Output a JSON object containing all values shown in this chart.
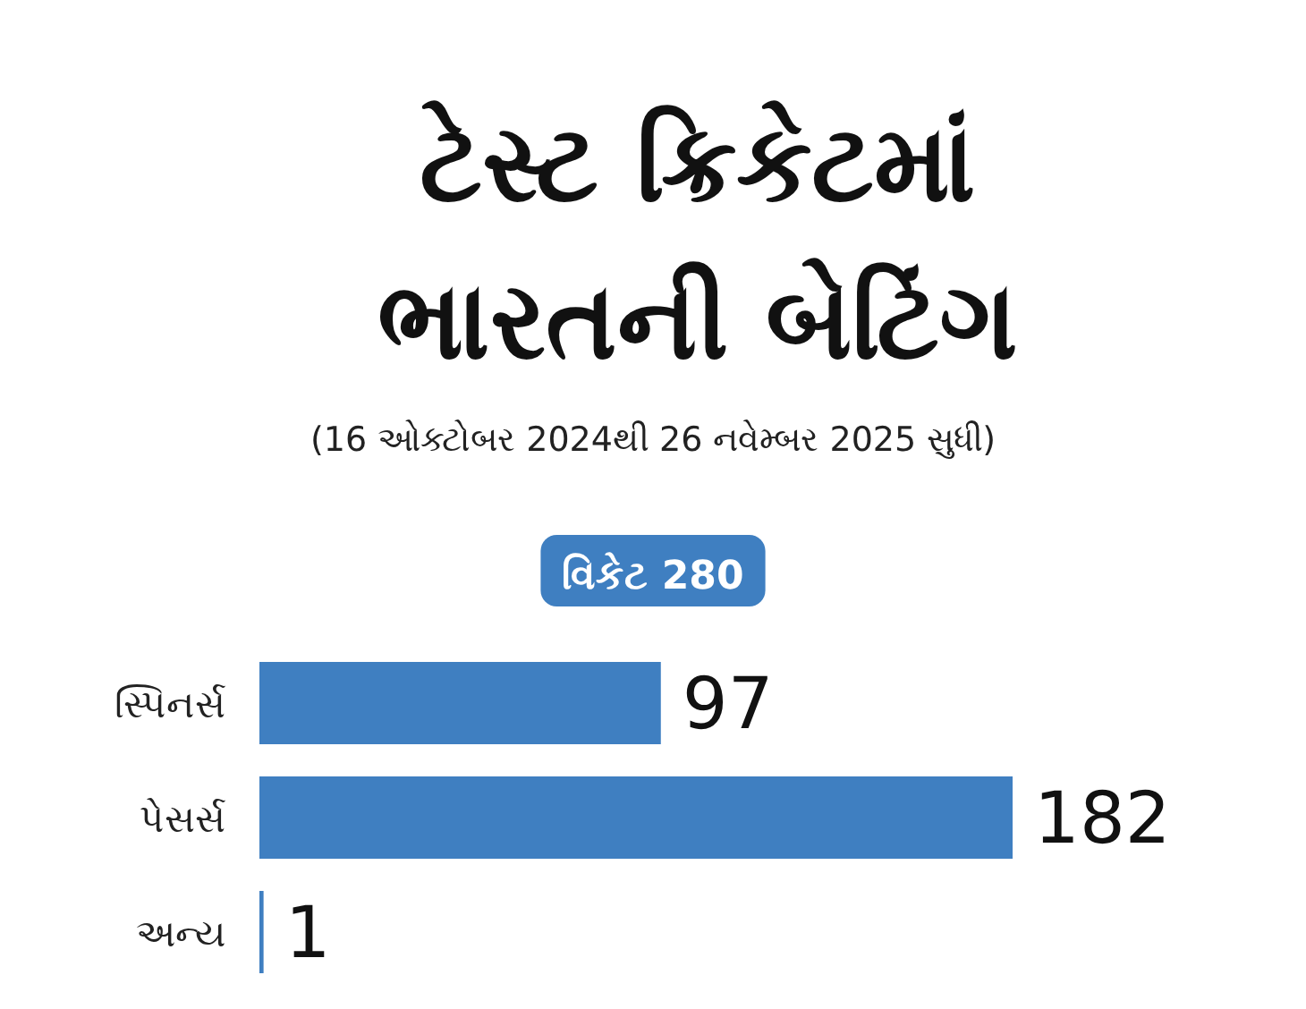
{
  "chart_data": {
    "type": "bar",
    "orientation": "horizontal",
    "title": "ટેસ્ટ ક્રિકેટમાં ભારતની બેટિંગ",
    "subtitle": "(16 ઓક્ટોબર 2024થી 26 નવેમ્બર 2025 સુધી)",
    "annotations": [
      "વિકેટ 280"
    ],
    "categories": [
      "સ્પિનર્સ",
      "પેસર્સ",
      "અન્ય"
    ],
    "values": [
      97,
      182,
      1
    ],
    "color": "#3f7fc1",
    "data_labels": true
  }
}
